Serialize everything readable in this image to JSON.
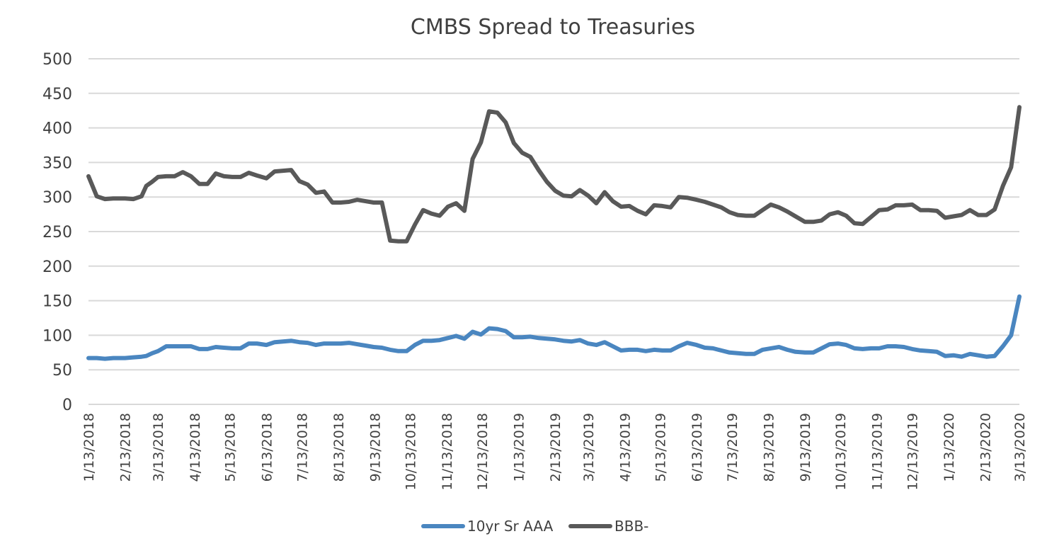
{
  "chart_data": {
    "type": "line",
    "title": "CMBS Spread to Treasuries",
    "xlabel": "",
    "ylabel": "",
    "ylim": [
      0,
      500
    ],
    "yticks": [
      0,
      50,
      100,
      150,
      200,
      250,
      300,
      350,
      400,
      450,
      500
    ],
    "grid": true,
    "legend_position": "bottom",
    "xtick_labels": [
      "1/13/2018",
      "2/13/2018",
      "3/13/2018",
      "4/13/2018",
      "5/13/2018",
      "6/13/2018",
      "7/13/2018",
      "8/13/2018",
      "9/13/2018",
      "10/13/2018",
      "11/13/2018",
      "12/13/2018",
      "1/13/2019",
      "2/13/2019",
      "3/13/2019",
      "4/13/2019",
      "5/13/2019",
      "6/13/2019",
      "7/13/2019",
      "8/13/2019",
      "9/13/2019",
      "10/13/2019",
      "11/13/2019",
      "12/13/2019",
      "1/13/2020",
      "2/13/2020",
      "3/13/2020"
    ],
    "series": [
      {
        "name": "10yr Sr AAA",
        "color": "#4a86c0",
        "points": [
          [
            "1/13/2018",
            67
          ],
          [
            "1/20/2018",
            67
          ],
          [
            "1/27/2018",
            66
          ],
          [
            "2/3/2018",
            67
          ],
          [
            "2/13/2018",
            67
          ],
          [
            "2/20/2018",
            68
          ],
          [
            "2/27/2018",
            69
          ],
          [
            "3/3/2018",
            70
          ],
          [
            "3/8/2018",
            74
          ],
          [
            "3/13/2018",
            77
          ],
          [
            "3/20/2018",
            84
          ],
          [
            "3/27/2018",
            84
          ],
          [
            "4/3/2018",
            84
          ],
          [
            "4/10/2018",
            84
          ],
          [
            "4/17/2018",
            80
          ],
          [
            "4/24/2018",
            80
          ],
          [
            "5/1/2018",
            83
          ],
          [
            "5/8/2018",
            82
          ],
          [
            "5/15/2018",
            81
          ],
          [
            "5/22/2018",
            81
          ],
          [
            "5/29/2018",
            88
          ],
          [
            "6/5/2018",
            88
          ],
          [
            "6/13/2018",
            86
          ],
          [
            "6/20/2018",
            90
          ],
          [
            "6/27/2018",
            91
          ],
          [
            "7/4/2018",
            92
          ],
          [
            "7/11/2018",
            90
          ],
          [
            "7/18/2018",
            89
          ],
          [
            "7/25/2018",
            86
          ],
          [
            "8/1/2018",
            88
          ],
          [
            "8/8/2018",
            88
          ],
          [
            "8/15/2018",
            88
          ],
          [
            "8/22/2018",
            89
          ],
          [
            "8/29/2018",
            87
          ],
          [
            "9/5/2018",
            85
          ],
          [
            "9/12/2018",
            83
          ],
          [
            "9/19/2018",
            82
          ],
          [
            "9/26/2018",
            79
          ],
          [
            "10/3/2018",
            77
          ],
          [
            "10/10/2018",
            77
          ],
          [
            "10/17/2018",
            86
          ],
          [
            "10/24/2018",
            92
          ],
          [
            "10/31/2018",
            92
          ],
          [
            "11/7/2018",
            93
          ],
          [
            "11/14/2018",
            96
          ],
          [
            "11/21/2018",
            99
          ],
          [
            "11/28/2018",
            95
          ],
          [
            "12/5/2018",
            105
          ],
          [
            "12/12/2018",
            101
          ],
          [
            "12/19/2018",
            110
          ],
          [
            "12/26/2018",
            109
          ],
          [
            "1/2/2019",
            106
          ],
          [
            "1/9/2019",
            97
          ],
          [
            "1/16/2019",
            97
          ],
          [
            "1/23/2019",
            98
          ],
          [
            "1/30/2019",
            96
          ],
          [
            "2/6/2019",
            95
          ],
          [
            "2/13/2019",
            94
          ],
          [
            "2/20/2019",
            92
          ],
          [
            "2/27/2019",
            91
          ],
          [
            "3/6/2019",
            93
          ],
          [
            "3/13/2019",
            88
          ],
          [
            "3/20/2019",
            86
          ],
          [
            "3/27/2019",
            90
          ],
          [
            "4/3/2019",
            84
          ],
          [
            "4/10/2019",
            78
          ],
          [
            "4/17/2019",
            79
          ],
          [
            "4/24/2019",
            79
          ],
          [
            "5/1/2019",
            77
          ],
          [
            "5/8/2019",
            79
          ],
          [
            "5/15/2019",
            78
          ],
          [
            "5/22/2019",
            78
          ],
          [
            "5/29/2019",
            84
          ],
          [
            "6/5/2019",
            89
          ],
          [
            "6/13/2019",
            86
          ],
          [
            "6/20/2019",
            82
          ],
          [
            "6/27/2019",
            81
          ],
          [
            "7/4/2019",
            78
          ],
          [
            "7/11/2019",
            75
          ],
          [
            "7/18/2019",
            74
          ],
          [
            "7/25/2019",
            73
          ],
          [
            "8/1/2019",
            73
          ],
          [
            "8/8/2019",
            79
          ],
          [
            "8/15/2019",
            81
          ],
          [
            "8/22/2019",
            83
          ],
          [
            "8/29/2019",
            79
          ],
          [
            "9/5/2019",
            76
          ],
          [
            "9/13/2019",
            75
          ],
          [
            "9/20/2019",
            75
          ],
          [
            "9/27/2019",
            81
          ],
          [
            "10/4/2019",
            87
          ],
          [
            "10/11/2019",
            88
          ],
          [
            "10/18/2019",
            86
          ],
          [
            "10/25/2019",
            81
          ],
          [
            "11/1/2019",
            80
          ],
          [
            "11/8/2019",
            81
          ],
          [
            "11/15/2019",
            81
          ],
          [
            "11/22/2019",
            84
          ],
          [
            "11/29/2019",
            84
          ],
          [
            "12/6/2019",
            83
          ],
          [
            "12/13/2019",
            80
          ],
          [
            "12/20/2019",
            78
          ],
          [
            "12/27/2019",
            77
          ],
          [
            "1/3/2020",
            76
          ],
          [
            "1/10/2020",
            70
          ],
          [
            "1/17/2020",
            71
          ],
          [
            "1/24/2020",
            69
          ],
          [
            "1/31/2020",
            73
          ],
          [
            "2/7/2020",
            71
          ],
          [
            "2/14/2020",
            69
          ],
          [
            "2/21/2020",
            70
          ],
          [
            "2/28/2020",
            84
          ],
          [
            "3/6/2020",
            100
          ],
          [
            "3/13/2020",
            156
          ]
        ]
      },
      {
        "name": "BBB-",
        "color": "#595959",
        "points": [
          [
            "1/13/2018",
            330
          ],
          [
            "1/20/2018",
            301
          ],
          [
            "1/27/2018",
            297
          ],
          [
            "2/3/2018",
            298
          ],
          [
            "2/13/2018",
            298
          ],
          [
            "2/20/2018",
            297
          ],
          [
            "2/27/2018",
            301
          ],
          [
            "3/3/2018",
            316
          ],
          [
            "3/8/2018",
            322
          ],
          [
            "3/13/2018",
            329
          ],
          [
            "3/20/2018",
            330
          ],
          [
            "3/27/2018",
            330
          ],
          [
            "4/3/2018",
            336
          ],
          [
            "4/10/2018",
            330
          ],
          [
            "4/17/2018",
            319
          ],
          [
            "4/24/2018",
            319
          ],
          [
            "5/1/2018",
            334
          ],
          [
            "5/8/2018",
            330
          ],
          [
            "5/15/2018",
            329
          ],
          [
            "5/22/2018",
            329
          ],
          [
            "5/29/2018",
            335
          ],
          [
            "6/5/2018",
            331
          ],
          [
            "6/13/2018",
            327
          ],
          [
            "6/20/2018",
            337
          ],
          [
            "6/27/2018",
            338
          ],
          [
            "7/4/2018",
            339
          ],
          [
            "7/11/2018",
            323
          ],
          [
            "7/18/2018",
            318
          ],
          [
            "7/25/2018",
            306
          ],
          [
            "8/1/2018",
            308
          ],
          [
            "8/8/2018",
            292
          ],
          [
            "8/15/2018",
            292
          ],
          [
            "8/22/2018",
            293
          ],
          [
            "8/29/2018",
            296
          ],
          [
            "9/5/2018",
            294
          ],
          [
            "9/12/2018",
            292
          ],
          [
            "9/19/2018",
            292
          ],
          [
            "9/26/2018",
            237
          ],
          [
            "10/3/2018",
            236
          ],
          [
            "10/10/2018",
            236
          ],
          [
            "10/17/2018",
            260
          ],
          [
            "10/24/2018",
            281
          ],
          [
            "10/31/2018",
            276
          ],
          [
            "11/7/2018",
            273
          ],
          [
            "11/14/2018",
            286
          ],
          [
            "11/21/2018",
            291
          ],
          [
            "11/28/2018",
            280
          ],
          [
            "12/5/2018",
            355
          ],
          [
            "12/12/2018",
            379
          ],
          [
            "12/19/2018",
            424
          ],
          [
            "12/26/2018",
            422
          ],
          [
            "1/2/2019",
            408
          ],
          [
            "1/9/2019",
            378
          ],
          [
            "1/16/2019",
            364
          ],
          [
            "1/23/2019",
            358
          ],
          [
            "1/30/2019",
            339
          ],
          [
            "2/6/2019",
            322
          ],
          [
            "2/13/2019",
            309
          ],
          [
            "2/20/2019",
            302
          ],
          [
            "2/27/2019",
            301
          ],
          [
            "3/6/2019",
            310
          ],
          [
            "3/13/2019",
            302
          ],
          [
            "3/20/2019",
            291
          ],
          [
            "3/27/2019",
            307
          ],
          [
            "4/3/2019",
            294
          ],
          [
            "4/10/2019",
            286
          ],
          [
            "4/17/2019",
            287
          ],
          [
            "4/24/2019",
            280
          ],
          [
            "5/1/2019",
            275
          ],
          [
            "5/8/2019",
            288
          ],
          [
            "5/15/2019",
            287
          ],
          [
            "5/22/2019",
            285
          ],
          [
            "5/29/2019",
            300
          ],
          [
            "6/5/2019",
            299
          ],
          [
            "6/13/2019",
            296
          ],
          [
            "6/20/2019",
            293
          ],
          [
            "6/27/2019",
            289
          ],
          [
            "7/4/2019",
            285
          ],
          [
            "7/11/2019",
            278
          ],
          [
            "7/18/2019",
            274
          ],
          [
            "7/25/2019",
            273
          ],
          [
            "8/1/2019",
            273
          ],
          [
            "8/8/2019",
            281
          ],
          [
            "8/15/2019",
            289
          ],
          [
            "8/22/2019",
            285
          ],
          [
            "8/29/2019",
            279
          ],
          [
            "9/5/2019",
            272
          ],
          [
            "9/13/2019",
            264
          ],
          [
            "9/20/2019",
            264
          ],
          [
            "9/27/2019",
            266
          ],
          [
            "10/4/2019",
            275
          ],
          [
            "10/11/2019",
            278
          ],
          [
            "10/18/2019",
            273
          ],
          [
            "10/25/2019",
            262
          ],
          [
            "11/1/2019",
            261
          ],
          [
            "11/8/2019",
            271
          ],
          [
            "11/15/2019",
            281
          ],
          [
            "11/22/2019",
            282
          ],
          [
            "11/29/2019",
            288
          ],
          [
            "12/6/2019",
            288
          ],
          [
            "12/13/2019",
            289
          ],
          [
            "12/20/2019",
            281
          ],
          [
            "12/27/2019",
            281
          ],
          [
            "1/3/2020",
            280
          ],
          [
            "1/10/2020",
            270
          ],
          [
            "1/17/2020",
            272
          ],
          [
            "1/24/2020",
            274
          ],
          [
            "1/31/2020",
            281
          ],
          [
            "2/7/2020",
            274
          ],
          [
            "2/14/2020",
            274
          ],
          [
            "2/21/2020",
            282
          ],
          [
            "2/28/2020",
            316
          ],
          [
            "3/6/2020",
            343
          ],
          [
            "3/13/2020",
            430
          ]
        ]
      }
    ]
  }
}
